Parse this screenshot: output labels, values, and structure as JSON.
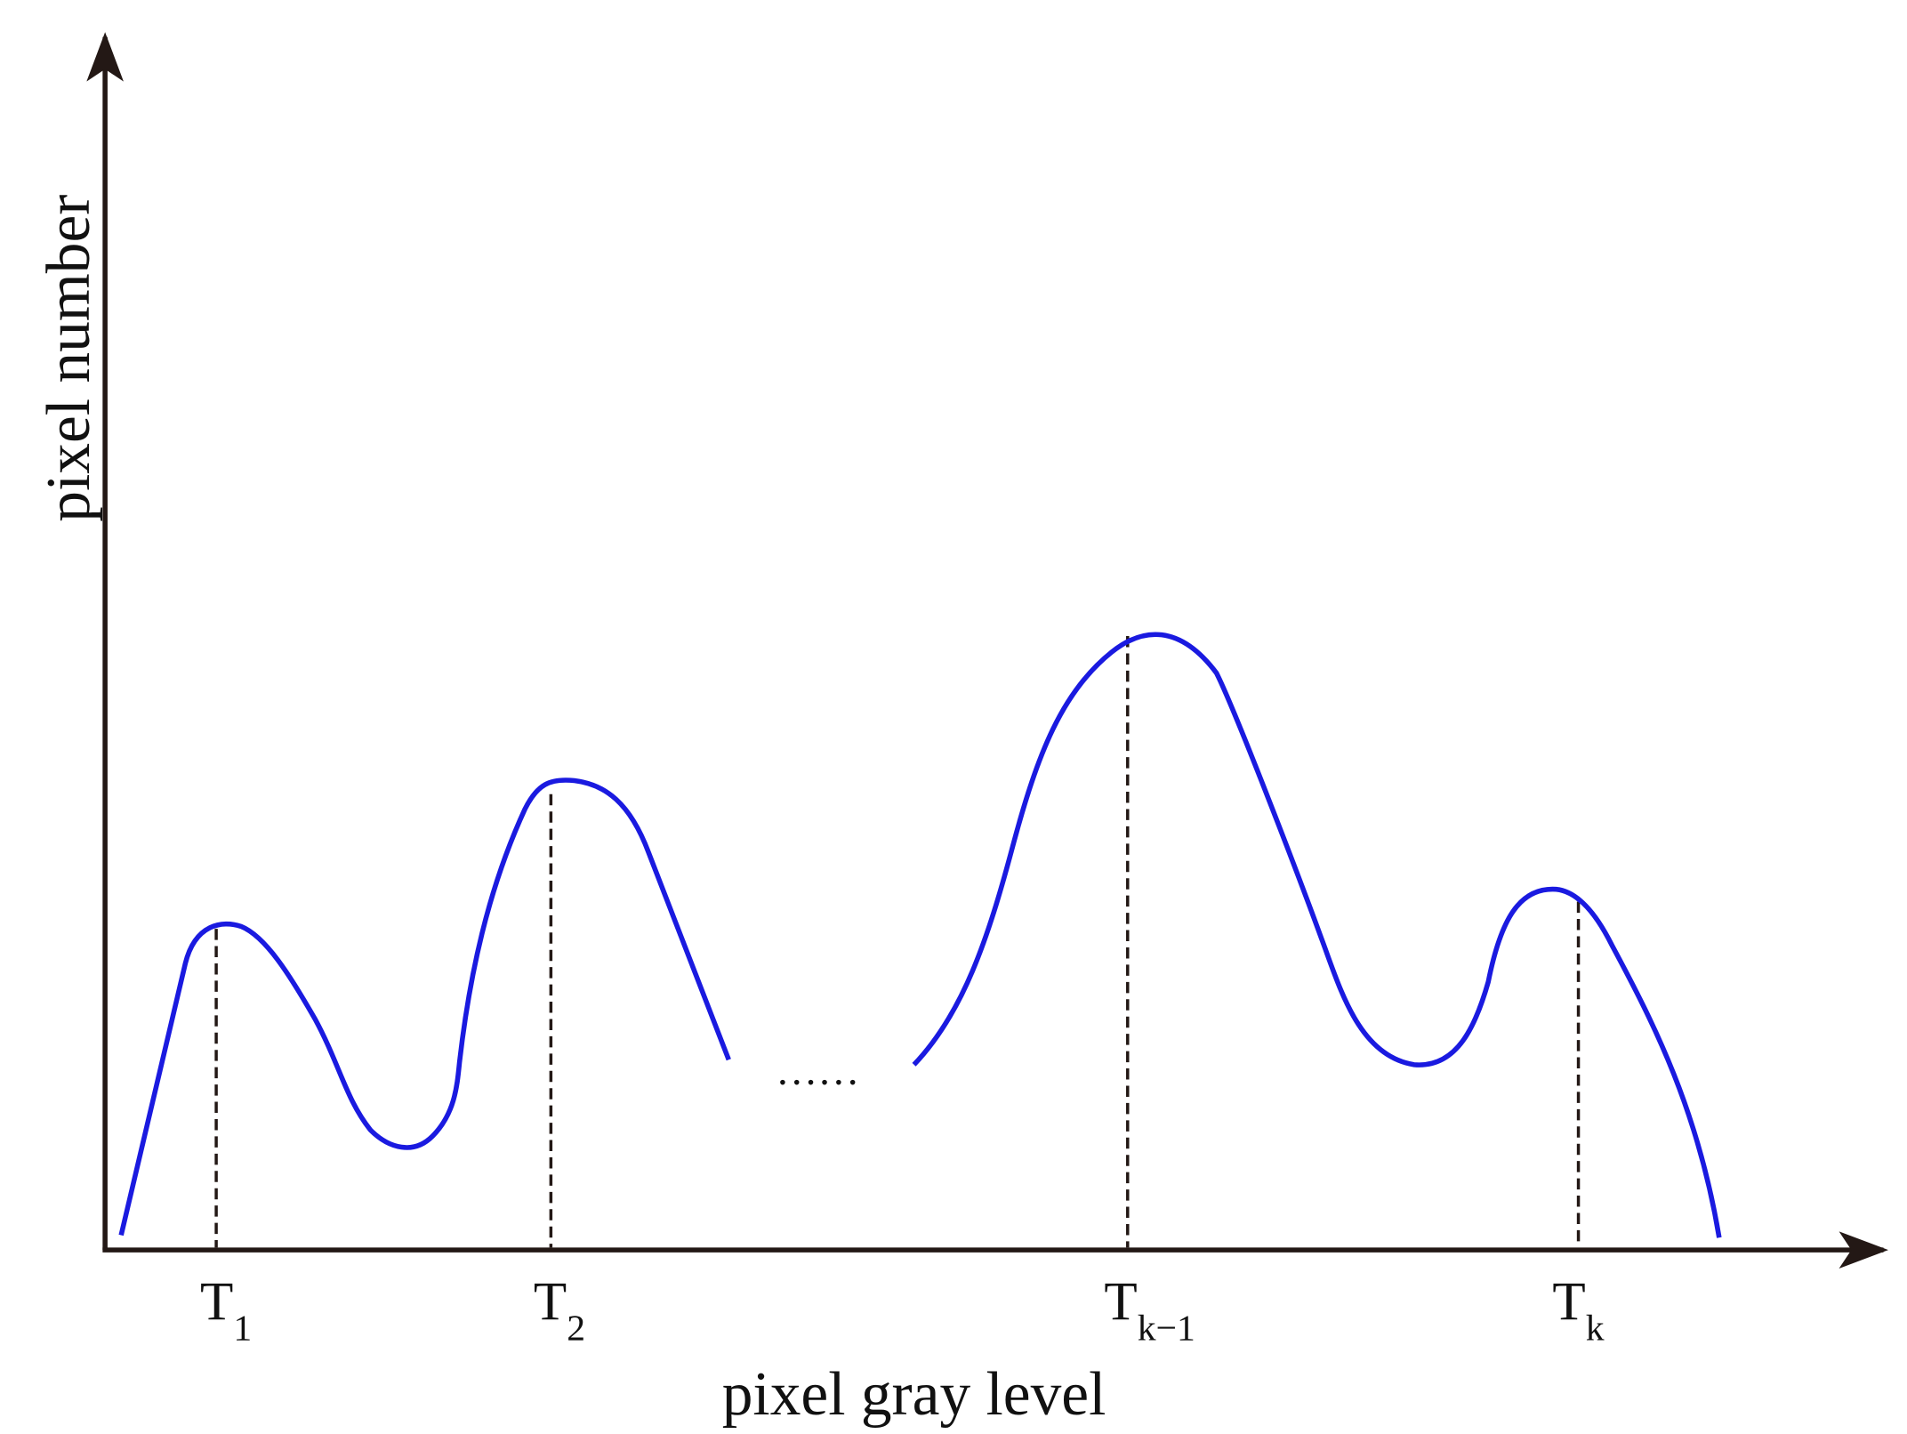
{
  "axes": {
    "y_label": "pixel number",
    "x_label": "pixel gray level"
  },
  "thresholds": [
    {
      "label": "T",
      "subscript": "1"
    },
    {
      "label": "T",
      "subscript": "2"
    },
    {
      "label": "T",
      "subscript": "k−1"
    },
    {
      "label": "T",
      "subscript": "k"
    }
  ],
  "ellipsis": "……"
}
